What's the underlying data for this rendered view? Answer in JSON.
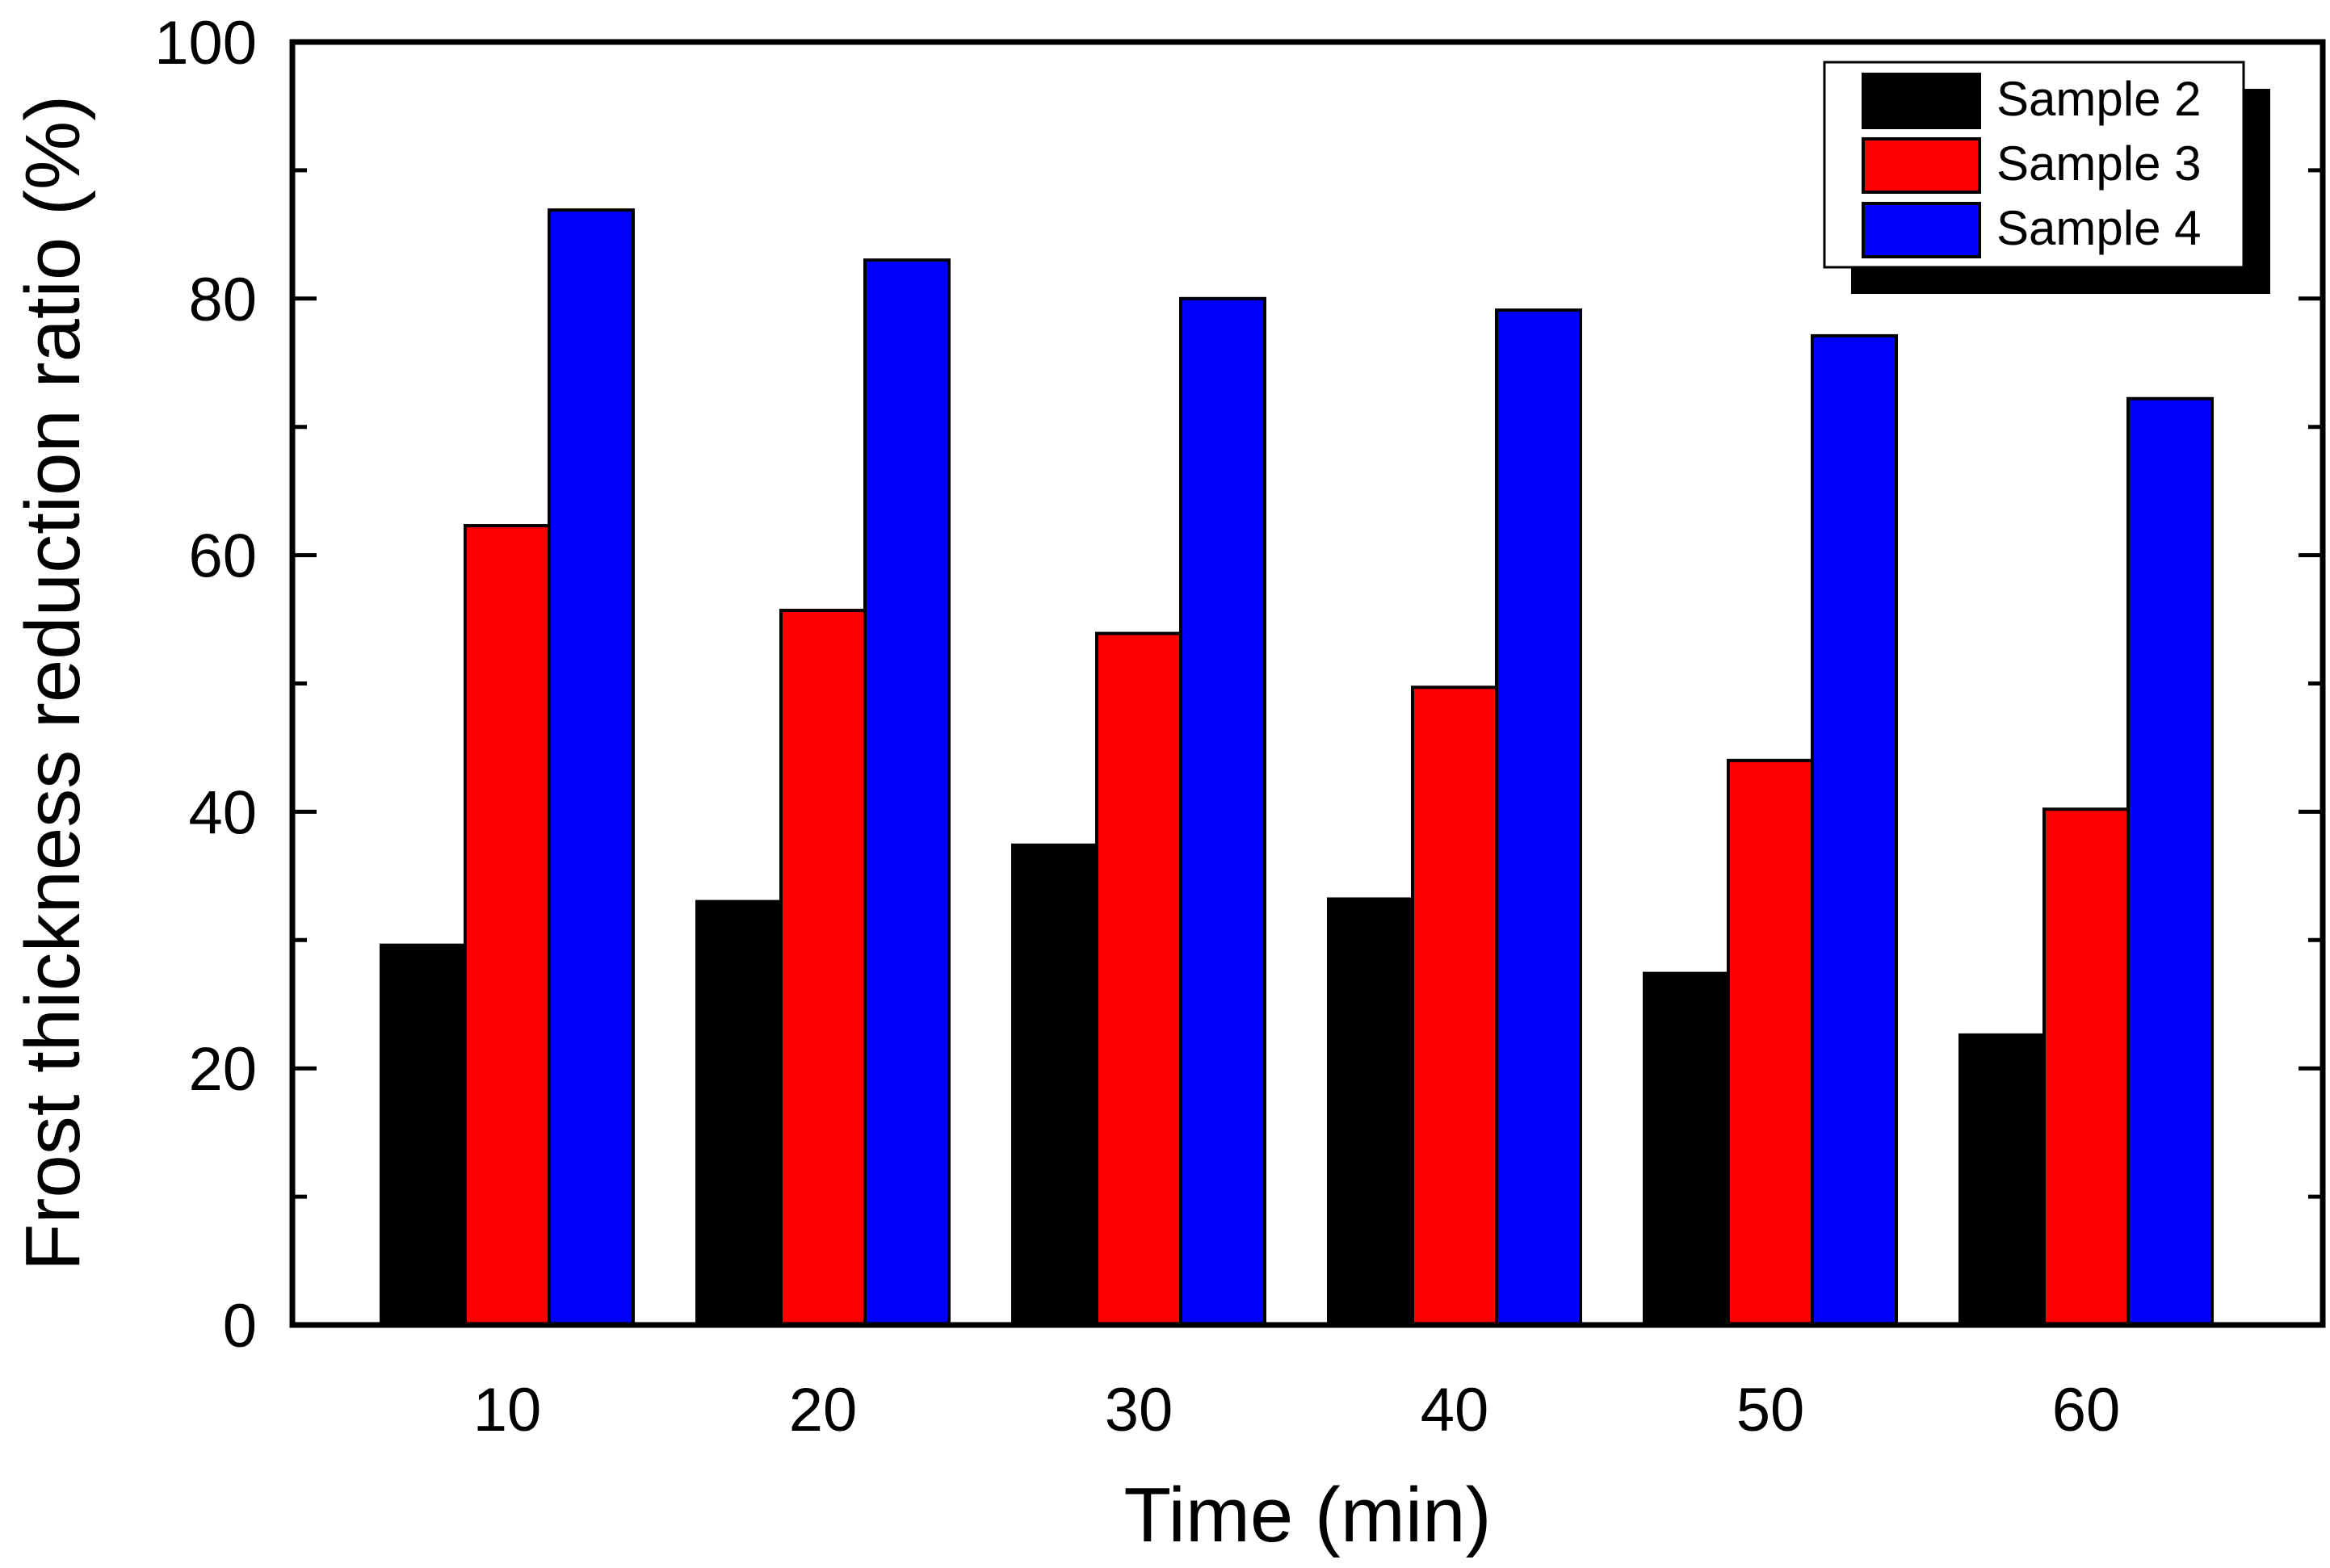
{
  "chart_data": {
    "type": "bar",
    "title": "",
    "xlabel": "Time (min)",
    "ylabel": "Frost thickness reduction ratio (%)",
    "categories": [
      "10",
      "20",
      "30",
      "40",
      "50",
      "60"
    ],
    "ylim": [
      0,
      100
    ],
    "yticks": [
      0,
      20,
      40,
      60,
      80,
      100
    ],
    "yminor_step": 10,
    "grid": false,
    "legend_position": "top-right",
    "series": [
      {
        "name": "Sample 2",
        "color": "#000000",
        "values": [
          29.6,
          33.0,
          37.4,
          33.2,
          27.4,
          22.6
        ]
      },
      {
        "name": "Sample 3",
        "color": "#ff0000",
        "values": [
          62.3,
          55.7,
          53.9,
          49.7,
          44.0,
          40.2
        ]
      },
      {
        "name": "Sample 4",
        "color": "#0000ff",
        "values": [
          86.9,
          83.0,
          80.0,
          79.1,
          77.1,
          72.2
        ]
      }
    ]
  }
}
